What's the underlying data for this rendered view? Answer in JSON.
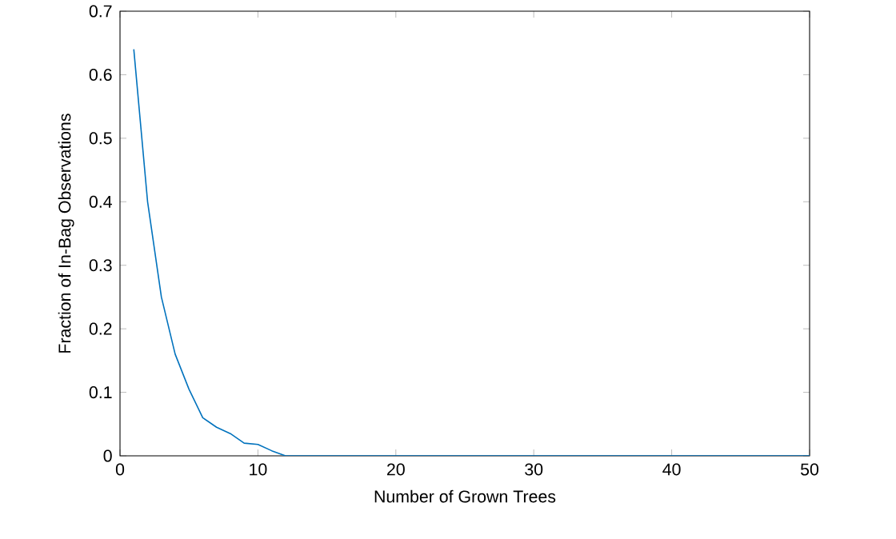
{
  "chart_data": {
    "type": "line",
    "xlabel": "Number of Grown Trees",
    "ylabel": "Fraction of In-Bag Observations",
    "x": [
      1,
      2,
      3,
      4,
      5,
      6,
      7,
      8,
      9,
      10,
      11,
      12,
      13,
      14,
      15,
      16,
      17,
      18,
      19,
      20,
      21,
      22,
      23,
      24,
      25,
      26,
      27,
      28,
      29,
      30,
      31,
      32,
      33,
      34,
      35,
      36,
      37,
      38,
      39,
      40,
      41,
      42,
      43,
      44,
      45,
      46,
      47,
      48,
      49,
      50
    ],
    "series": [
      {
        "color": "#0072bd",
        "values": [
          0.64,
          0.4,
          0.25,
          0.16,
          0.105,
          0.06,
          0.045,
          0.035,
          0.02,
          0.018,
          0.008,
          0,
          0,
          0,
          0,
          0,
          0,
          0,
          0,
          0,
          0,
          0,
          0,
          0,
          0,
          0,
          0,
          0,
          0,
          0,
          0,
          0,
          0,
          0,
          0,
          0,
          0,
          0,
          0,
          0,
          0,
          0,
          0,
          0,
          0,
          0,
          0,
          0,
          0,
          0
        ]
      }
    ],
    "xlim": [
      0,
      50
    ],
    "ylim": [
      0,
      0.7
    ],
    "xticks": [
      0,
      10,
      20,
      30,
      40,
      50
    ],
    "yticks": [
      0,
      0.1,
      0.2,
      0.3,
      0.4,
      0.5,
      0.6,
      0.7
    ],
    "marker": "none",
    "line_style": "solid"
  }
}
